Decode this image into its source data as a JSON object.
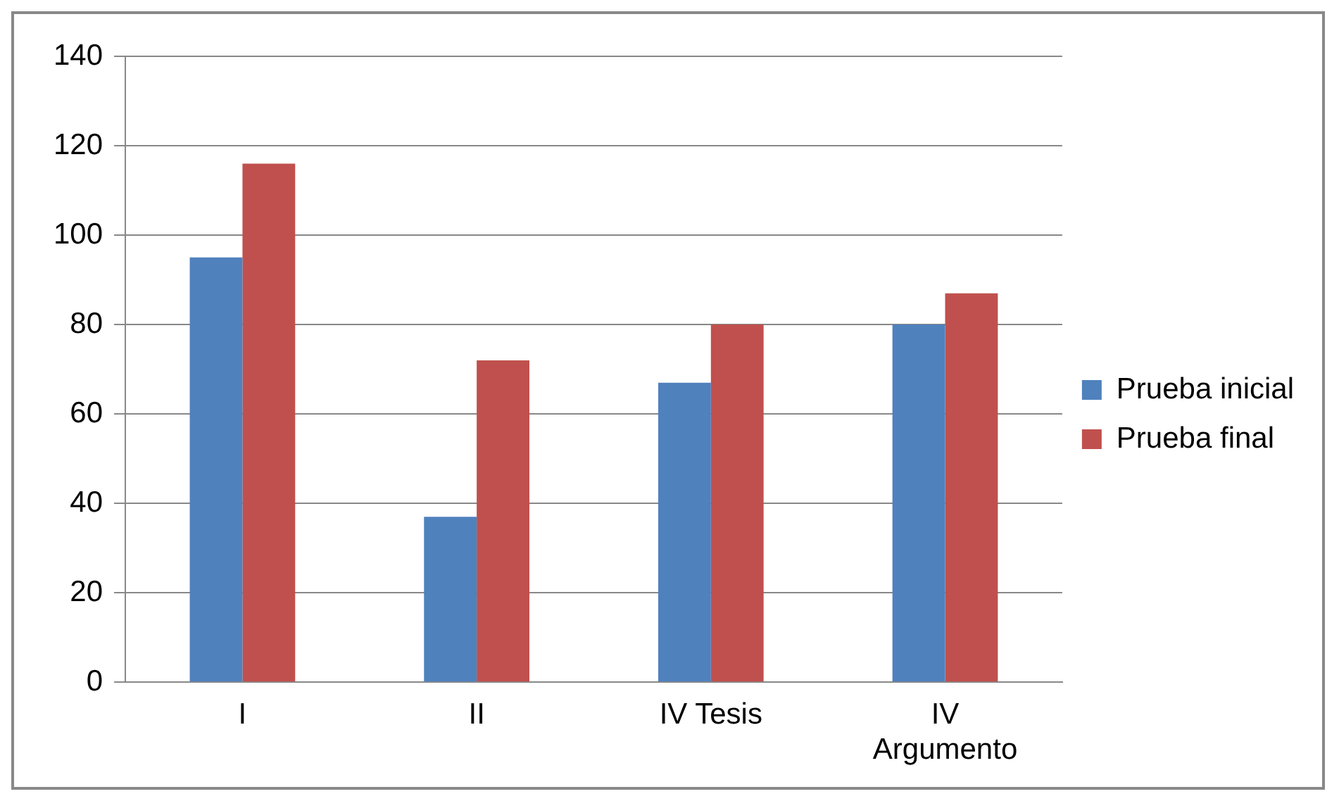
{
  "chart_data": {
    "type": "bar",
    "categories": [
      "I",
      "II",
      "IV Tesis",
      "IV Argumento"
    ],
    "series": [
      {
        "name": "Prueba inicial",
        "color": "#4f81bd",
        "values": [
          95,
          37,
          67,
          80
        ]
      },
      {
        "name": "Prueba final",
        "color": "#c0504d",
        "values": [
          116,
          72,
          80,
          87
        ]
      }
    ],
    "ylim": [
      0,
      140
    ],
    "yticks": [
      0,
      20,
      40,
      60,
      80,
      100,
      120,
      140
    ],
    "grid": "y",
    "legend": "right"
  }
}
